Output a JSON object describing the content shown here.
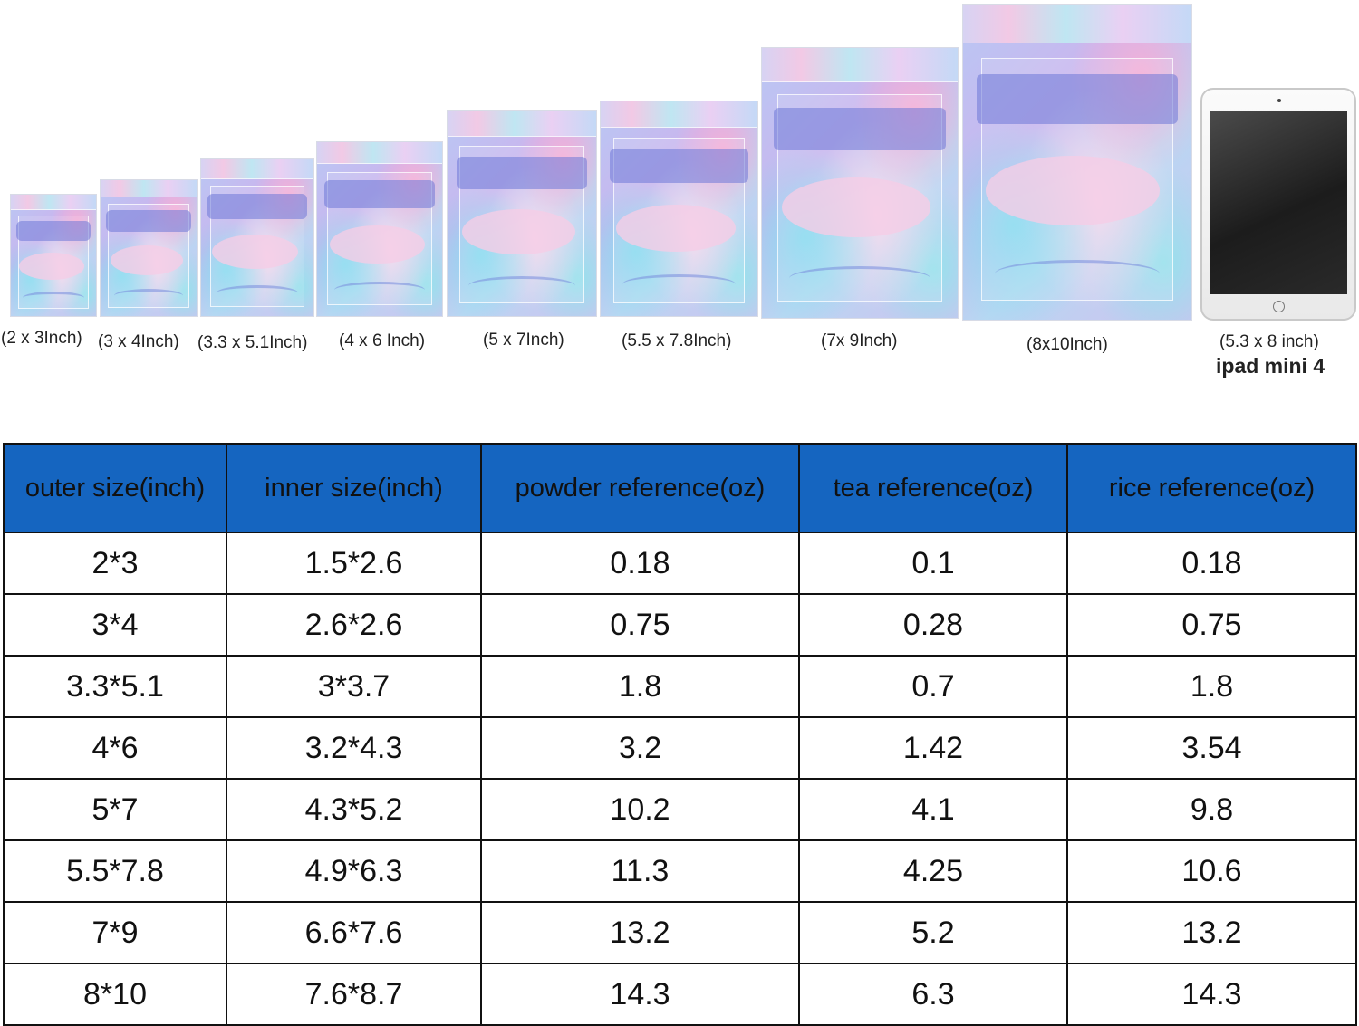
{
  "bags": [
    {
      "label": "(2 x 3Inch)"
    },
    {
      "label": "(3 x 4Inch)"
    },
    {
      "label": "(3.3 x 5.1Inch)"
    },
    {
      "label": "(4 x 6 Inch)"
    },
    {
      "label": "(5 x 7Inch)"
    },
    {
      "label": "(5.5 x 7.8Inch)"
    },
    {
      "label": "(7x 9Inch)"
    },
    {
      "label": "(8x10Inch)"
    }
  ],
  "reference_device": {
    "size_label": "(5.3 x 8 inch)",
    "name": "ipad mini 4"
  },
  "table": {
    "headers": [
      "outer size(inch)",
      "inner size(inch)",
      "powder reference(oz)",
      "tea reference(oz)",
      "rice reference(oz)"
    ],
    "rows": [
      [
        "2*3",
        "1.5*2.6",
        "0.18",
        "0.1",
        "0.18"
      ],
      [
        "3*4",
        "2.6*2.6",
        "0.75",
        "0.28",
        "0.75"
      ],
      [
        "3.3*5.1",
        "3*3.7",
        "1.8",
        "0.7",
        "1.8"
      ],
      [
        "4*6",
        "3.2*4.3",
        "3.2",
        "1.42",
        "3.54"
      ],
      [
        "5*7",
        "4.3*5.2",
        "10.2",
        "4.1",
        "9.8"
      ],
      [
        "5.5*7.8",
        "4.9*6.3",
        "11.3",
        "4.25",
        "10.6"
      ],
      [
        "7*9",
        "6.6*7.6",
        "13.2",
        "5.2",
        "13.2"
      ],
      [
        "8*10",
        "7.6*8.7",
        "14.3",
        "6.3",
        "14.3"
      ]
    ],
    "header_color": "#1565c0"
  }
}
